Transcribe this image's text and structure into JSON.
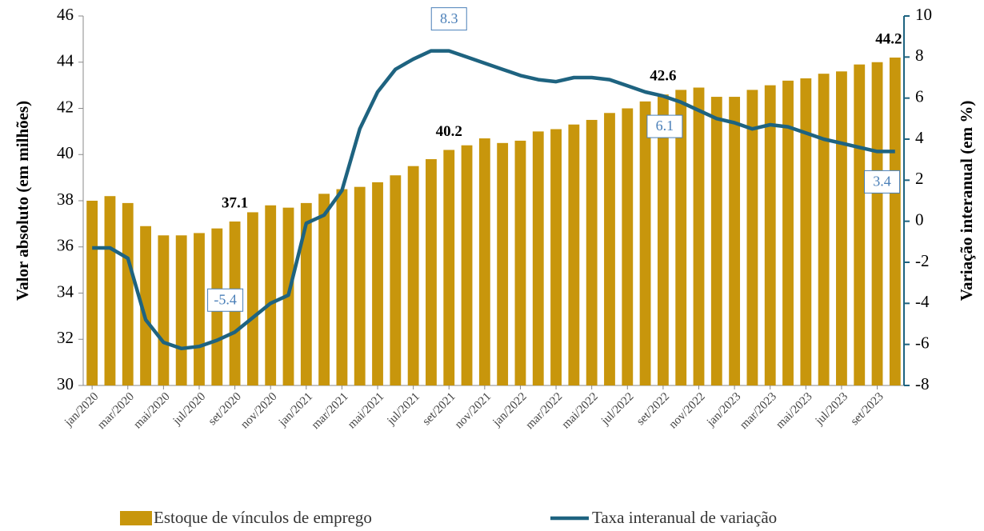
{
  "chart_data": {
    "type": "bar-line",
    "y_label": "Valor absoluto (em milhões)",
    "y2_label": "Variação interanual (em %)",
    "categories": [
      "jan/2020",
      null,
      "mar/2020",
      null,
      "mai/2020",
      null,
      "jul/2020",
      null,
      "set/2020",
      null,
      "nov/2020",
      null,
      "jan/2021",
      null,
      "mar/2021",
      null,
      "mai/2021",
      null,
      "jul/2021",
      null,
      "set/2021",
      null,
      "nov/2021",
      null,
      "jan/2022",
      null,
      "mar/2022",
      null,
      "mai/2022",
      null,
      "jul/2022",
      null,
      "set/2022",
      null,
      "nov/2022",
      null,
      "jan/2023",
      null,
      "mar/2023",
      null,
      "mai/2023",
      null,
      "jul/2023",
      null,
      "set/2023",
      null
    ],
    "series": [
      {
        "name": "Estoque de vínculos de emprego",
        "type": "bar",
        "color": "#c8960c",
        "axis": "y",
        "values": [
          38.0,
          38.2,
          37.9,
          36.9,
          36.5,
          36.5,
          36.6,
          36.8,
          37.1,
          37.5,
          37.8,
          37.7,
          37.9,
          38.3,
          38.5,
          38.6,
          38.8,
          39.1,
          39.5,
          39.8,
          40.2,
          40.4,
          40.7,
          40.5,
          40.6,
          41.0,
          41.1,
          41.3,
          41.5,
          41.8,
          42.0,
          42.3,
          42.6,
          42.8,
          42.9,
          42.5,
          42.5,
          42.8,
          43.0,
          43.2,
          43.3,
          43.5,
          43.6,
          43.9,
          44.0,
          44.2
        ]
      },
      {
        "name": "Taxa interanual de variação",
        "type": "line",
        "color": "#1e6380",
        "axis": "y2",
        "values": [
          -1.3,
          -1.3,
          -1.8,
          -4.8,
          -5.9,
          -6.2,
          -6.1,
          -5.8,
          -5.4,
          -4.7,
          -4.0,
          -3.6,
          -0.1,
          0.3,
          1.5,
          4.5,
          6.3,
          7.4,
          7.9,
          8.3,
          8.3,
          8.0,
          7.7,
          7.4,
          7.1,
          6.9,
          6.8,
          7.0,
          7.0,
          6.9,
          6.6,
          6.3,
          6.1,
          5.8,
          5.4,
          5.0,
          4.8,
          4.5,
          4.7,
          4.6,
          4.3,
          4.0,
          3.8,
          3.6,
          3.4,
          3.4
        ]
      }
    ],
    "ylim": [
      30,
      46
    ],
    "yticks": [
      30,
      32,
      34,
      36,
      38,
      40,
      42,
      44,
      46
    ],
    "y2lim": [
      -8,
      10
    ],
    "y2ticks": [
      -8,
      -6,
      -4,
      -2,
      0,
      2,
      4,
      6,
      8,
      10
    ]
  }
}
